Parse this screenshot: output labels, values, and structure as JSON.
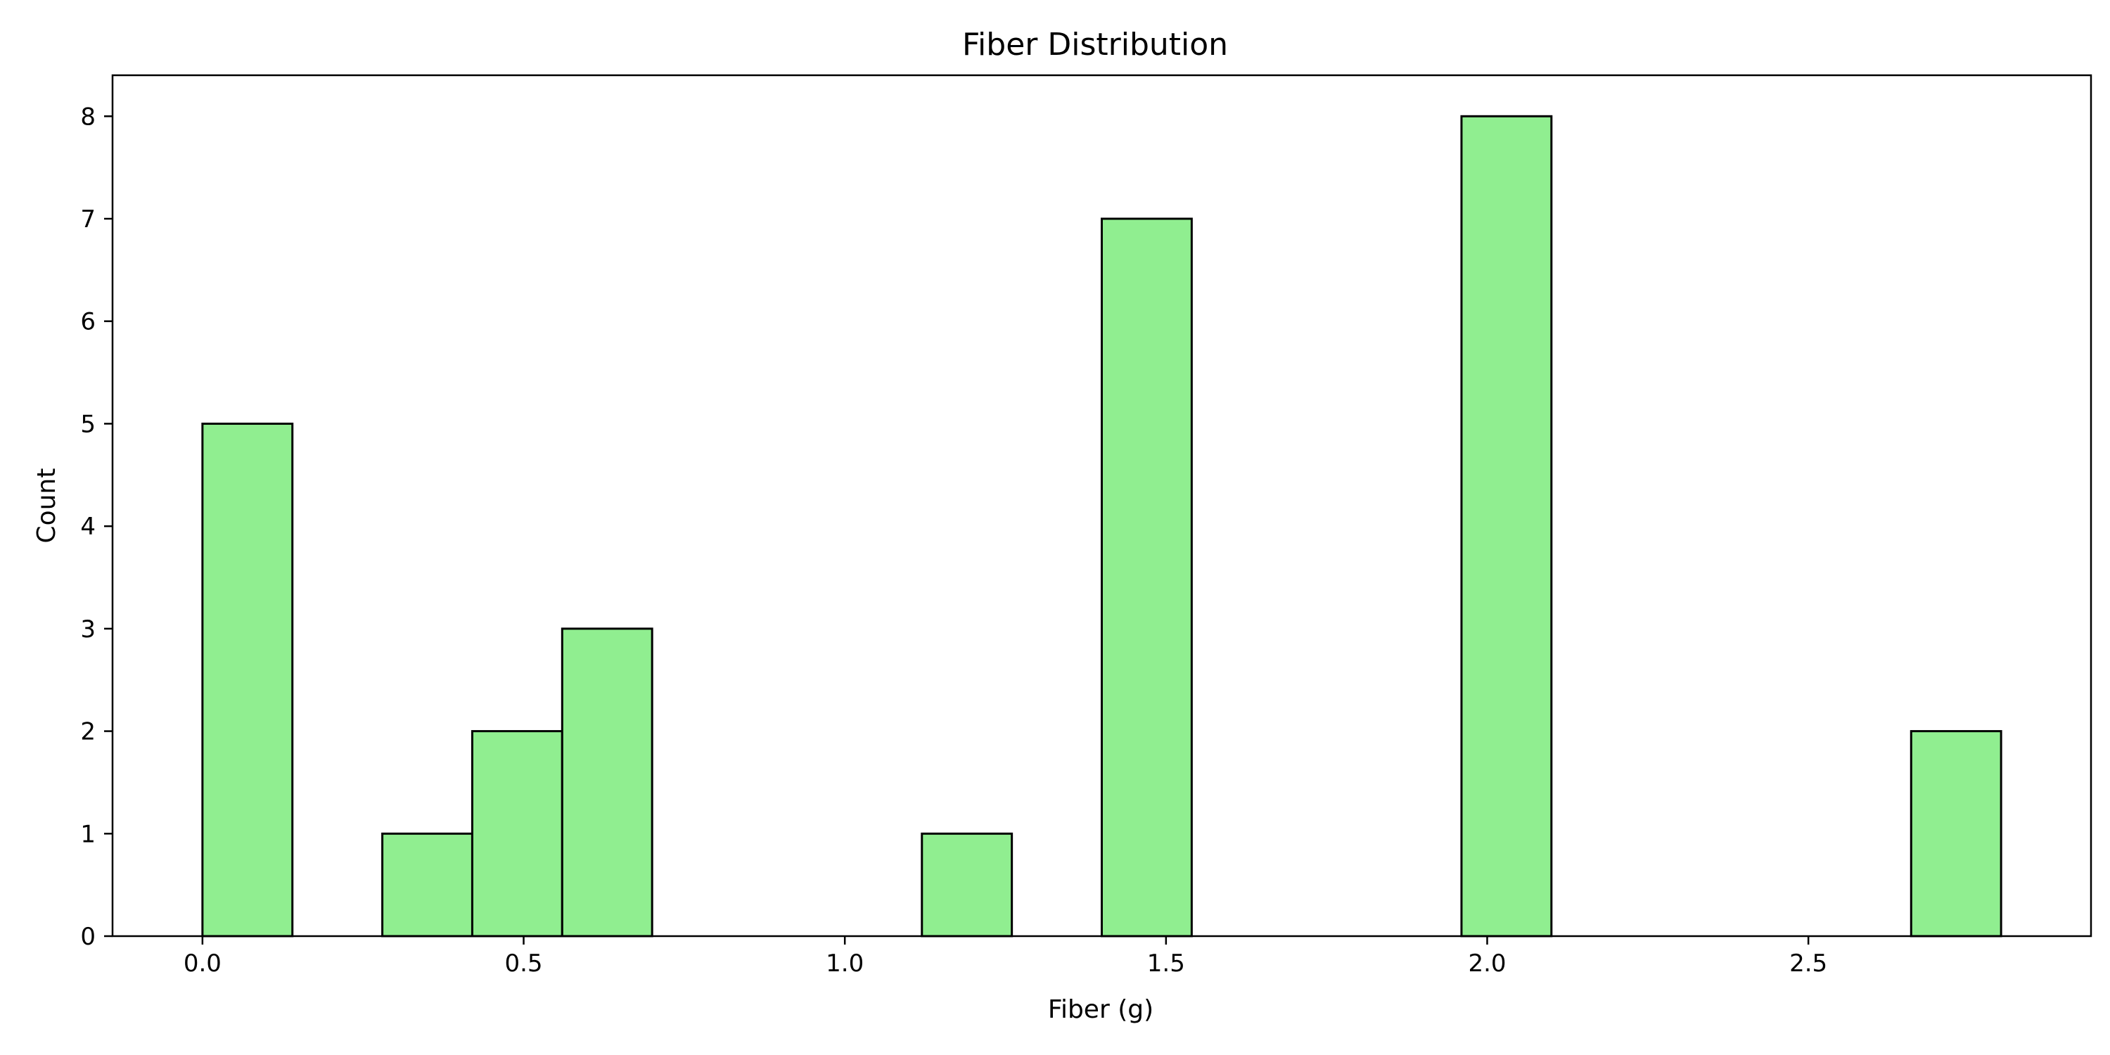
{
  "chart_data": {
    "type": "bar",
    "title": "Fiber Distribution",
    "xlabel": "Fiber (g)",
    "ylabel": "Count",
    "xlim": [
      -0.14,
      2.94
    ],
    "ylim": [
      0,
      8.4
    ],
    "xticks": [
      {
        "value": 0.0,
        "label": "0.0"
      },
      {
        "value": 0.5,
        "label": "0.5"
      },
      {
        "value": 1.0,
        "label": "1.0"
      },
      {
        "value": 1.5,
        "label": "1.5"
      },
      {
        "value": 2.0,
        "label": "2.0"
      },
      {
        "value": 2.5,
        "label": "2.5"
      }
    ],
    "yticks": [
      {
        "value": 0,
        "label": "0"
      },
      {
        "value": 1,
        "label": "1"
      },
      {
        "value": 2,
        "label": "2"
      },
      {
        "value": 3,
        "label": "3"
      },
      {
        "value": 4,
        "label": "4"
      },
      {
        "value": 5,
        "label": "5"
      },
      {
        "value": 6,
        "label": "6"
      },
      {
        "value": 7,
        "label": "7"
      },
      {
        "value": 8,
        "label": "8"
      }
    ],
    "bins": [
      {
        "x0": 0.0,
        "x1": 0.14,
        "count": 5
      },
      {
        "x0": 0.14,
        "x1": 0.28,
        "count": 0
      },
      {
        "x0": 0.28,
        "x1": 0.42,
        "count": 1
      },
      {
        "x0": 0.42,
        "x1": 0.56,
        "count": 2
      },
      {
        "x0": 0.56,
        "x1": 0.7,
        "count": 3
      },
      {
        "x0": 0.7,
        "x1": 0.84,
        "count": 0
      },
      {
        "x0": 0.84,
        "x1": 0.98,
        "count": 0
      },
      {
        "x0": 0.98,
        "x1": 1.12,
        "count": 0
      },
      {
        "x0": 1.12,
        "x1": 1.26,
        "count": 1
      },
      {
        "x0": 1.26,
        "x1": 1.4,
        "count": 0
      },
      {
        "x0": 1.4,
        "x1": 1.54,
        "count": 7
      },
      {
        "x0": 1.54,
        "x1": 1.68,
        "count": 0
      },
      {
        "x0": 1.68,
        "x1": 1.82,
        "count": 0
      },
      {
        "x0": 1.82,
        "x1": 1.96,
        "count": 0
      },
      {
        "x0": 1.96,
        "x1": 2.1,
        "count": 8
      },
      {
        "x0": 2.1,
        "x1": 2.24,
        "count": 0
      },
      {
        "x0": 2.24,
        "x1": 2.38,
        "count": 0
      },
      {
        "x0": 2.38,
        "x1": 2.52,
        "count": 0
      },
      {
        "x0": 2.52,
        "x1": 2.66,
        "count": 0
      },
      {
        "x0": 2.66,
        "x1": 2.8,
        "count": 2
      }
    ],
    "bar_color": "#90ee90",
    "edge_color": "#000000",
    "grid": false
  }
}
